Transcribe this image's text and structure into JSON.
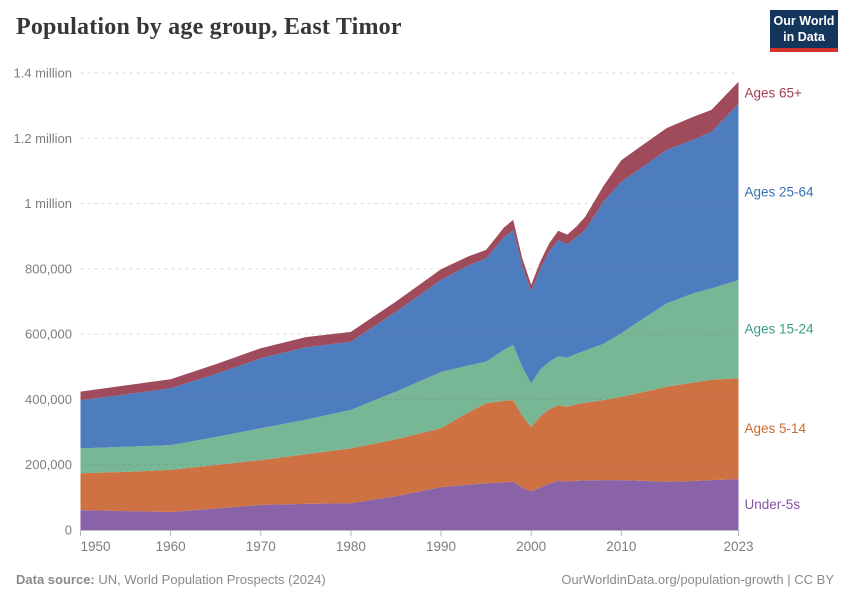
{
  "header": {
    "title": "Population by age group, East Timor"
  },
  "logo": {
    "line1": "Our World",
    "line2": "in Data",
    "bg_color": "#14355C",
    "bar_color": "#D0342C"
  },
  "chart_data": {
    "type": "area",
    "stacked": true,
    "title": "Population by age group, East Timor",
    "unit": "people",
    "x": [
      1950,
      1955,
      1960,
      1965,
      1970,
      1975,
      1980,
      1985,
      1990,
      1993,
      1995,
      1997,
      1998,
      1999,
      2000,
      2001,
      2002,
      2003,
      2004,
      2005,
      2006,
      2008,
      2010,
      2012,
      2015,
      2018,
      2020,
      2023
    ],
    "series": [
      {
        "name": "Under-5s",
        "color": "#8962A8",
        "label_color": "#8852A1",
        "values": [
          61000,
          58000,
          55000,
          66000,
          77000,
          80000,
          82000,
          104000,
          131000,
          139000,
          143000,
          146000,
          148000,
          130000,
          119000,
          130000,
          142000,
          150000,
          149000,
          151000,
          152000,
          153000,
          153000,
          151000,
          148000,
          150000,
          153000,
          156000
        ]
      },
      {
        "name": "Ages 5-14",
        "color": "#CE7244",
        "label_color": "#C96A2D",
        "values": [
          113000,
          120000,
          129000,
          133000,
          137000,
          152000,
          168000,
          174000,
          181000,
          221000,
          245000,
          250000,
          250000,
          220000,
          196000,
          218000,
          228000,
          232000,
          229000,
          234000,
          238000,
          245000,
          255000,
          269000,
          291000,
          302000,
          307000,
          309000
        ]
      },
      {
        "name": "Ages 15-24",
        "color": "#77B795",
        "label_color": "#3B9C84",
        "values": [
          76000,
          77000,
          76000,
          86000,
          98000,
          106000,
          118000,
          146000,
          172000,
          144000,
          128000,
          156000,
          169000,
          150000,
          134000,
          144000,
          145000,
          150000,
          150000,
          155000,
          160000,
          172000,
          195000,
          220000,
          255000,
          273000,
          280000,
          301000
        ]
      },
      {
        "name": "Ages 25-64",
        "color": "#4D7DBF",
        "label_color": "#3671B5",
        "values": [
          148000,
          160000,
          174000,
          193000,
          214000,
          222000,
          209000,
          244000,
          282000,
          306000,
          316000,
          345000,
          352000,
          310000,
          281000,
          308000,
          337000,
          356000,
          347000,
          357000,
          370000,
          435000,
          464000,
          465000,
          470000,
          471000,
          480000,
          539000
        ]
      },
      {
        "name": "Ages 65+",
        "color": "#A04B5C",
        "label_color": "#A33E52",
        "values": [
          26000,
          28000,
          28000,
          30000,
          31000,
          31000,
          30000,
          32000,
          33000,
          28000,
          26000,
          30000,
          31000,
          23000,
          21000,
          22000,
          26000,
          29000,
          30000,
          32000,
          40000,
          48000,
          66000,
          67000,
          67000,
          70000,
          67000,
          68000
        ]
      }
    ],
    "ylim": [
      0,
      1400000
    ],
    "yticks": [
      {
        "v": 0,
        "label": "0"
      },
      {
        "v": 200000,
        "label": "200,000"
      },
      {
        "v": 400000,
        "label": "400,000"
      },
      {
        "v": 600000,
        "label": "600,000"
      },
      {
        "v": 800000,
        "label": "800,000"
      },
      {
        "v": 1000000,
        "label": "1 million"
      },
      {
        "v": 1200000,
        "label": "1.2 million"
      },
      {
        "v": 1400000,
        "label": "1.4 million"
      }
    ],
    "xticks": [
      1950,
      1960,
      1970,
      1980,
      1990,
      2000,
      2010,
      2023
    ],
    "grid": "dashed-horizontal",
    "legend_position": "right-of-areas"
  },
  "footer": {
    "source_label": "Data source:",
    "source_text": " UN, World Population Prospects (2024)",
    "link": "OurWorldinData.org/population-growth | CC BY"
  }
}
